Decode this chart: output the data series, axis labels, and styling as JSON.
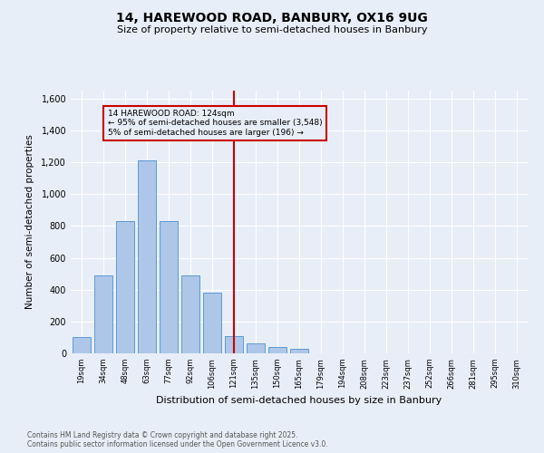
{
  "title1": "14, HAREWOOD ROAD, BANBURY, OX16 9UG",
  "title2": "Size of property relative to semi-detached houses in Banbury",
  "xlabel": "Distribution of semi-detached houses by size in Banbury",
  "ylabel": "Number of semi-detached properties",
  "categories": [
    "19sqm",
    "34sqm",
    "48sqm",
    "63sqm",
    "77sqm",
    "92sqm",
    "106sqm",
    "121sqm",
    "135sqm",
    "150sqm",
    "165sqm",
    "179sqm",
    "194sqm",
    "208sqm",
    "223sqm",
    "237sqm",
    "252sqm",
    "266sqm",
    "281sqm",
    "295sqm",
    "310sqm"
  ],
  "values": [
    100,
    490,
    830,
    1210,
    830,
    490,
    380,
    110,
    60,
    40,
    30,
    0,
    0,
    0,
    0,
    0,
    0,
    0,
    0,
    0,
    0
  ],
  "bar_color": "#aec6e8",
  "bar_edge_color": "#5b9bd5",
  "vline_x_index": 7,
  "vline_color": "#cc0000",
  "annotation_title": "14 HAREWOOD ROAD: 124sqm",
  "annotation_line1": "← 95% of semi-detached houses are smaller (3,548)",
  "annotation_line2": "5% of semi-detached houses are larger (196) →",
  "annotation_box_color": "#cc0000",
  "ylim": [
    0,
    1650
  ],
  "yticks": [
    0,
    200,
    400,
    600,
    800,
    1000,
    1200,
    1400,
    1600
  ],
  "background_color": "#e8eef7",
  "grid_color": "#ffffff",
  "footer1": "Contains HM Land Registry data © Crown copyright and database right 2025.",
  "footer2": "Contains public sector information licensed under the Open Government Licence v3.0."
}
